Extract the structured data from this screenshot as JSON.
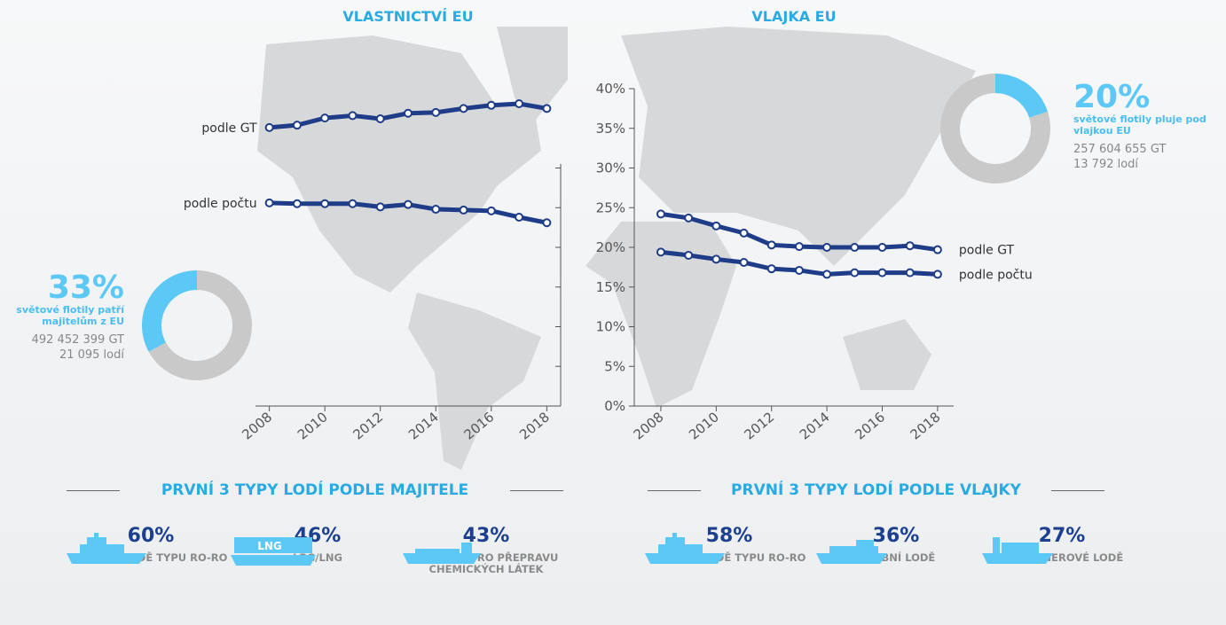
{
  "chart_data": [
    {
      "type": "line",
      "title": "VLASTNICTVÍ EU",
      "x": [
        2008,
        2009,
        2010,
        2011,
        2012,
        2013,
        2014,
        2015,
        2016,
        2017,
        2018
      ],
      "xlim": [
        2007.5,
        2018.5
      ],
      "xticks": [
        2008,
        2010,
        2012,
        2014,
        2016,
        2018
      ],
      "ylim": [
        0,
        40
      ],
      "series": [
        {
          "name": "podle GT",
          "color": "#1f3c88",
          "values": [
            35.1,
            35.4,
            36.3,
            36.6,
            36.2,
            36.9,
            37.0,
            37.5,
            37.9,
            38.1,
            37.5
          ]
        },
        {
          "name": "podle počtu",
          "color": "#1f3c88",
          "values": [
            25.6,
            25.5,
            25.5,
            25.5,
            25.1,
            25.4,
            24.8,
            24.7,
            24.6,
            23.8,
            23.1
          ]
        }
      ]
    },
    {
      "type": "line",
      "title": "VLAJKA EU",
      "x": [
        2008,
        2009,
        2010,
        2011,
        2012,
        2013,
        2014,
        2015,
        2016,
        2017,
        2018
      ],
      "xlim": [
        2007.04,
        2018.58
      ],
      "xticks": [
        2008,
        2010,
        2012,
        2014,
        2016,
        2018
      ],
      "ylim": [
        0,
        40
      ],
      "yticks": [
        {
          "value": 0,
          "label": "0%"
        },
        {
          "value": 5,
          "label": "5%"
        },
        {
          "value": 10,
          "label": "10%"
        },
        {
          "value": 15,
          "label": "15%"
        },
        {
          "value": 20,
          "label": "20%"
        },
        {
          "value": 25,
          "label": "25%"
        },
        {
          "value": 30,
          "label": "30%"
        },
        {
          "value": 35,
          "label": "35%"
        },
        {
          "value": 40,
          "label": "40%"
        }
      ],
      "series": [
        {
          "name": "podle GT",
          "color": "#1f3c88",
          "values": [
            24.2,
            23.7,
            22.7,
            21.8,
            20.3,
            20.1,
            20.0,
            20.0,
            20.0,
            20.2,
            19.7
          ]
        },
        {
          "name": "podle počtu",
          "color": "#1f3c88",
          "values": [
            19.4,
            19.0,
            18.5,
            18.1,
            17.3,
            17.1,
            16.6,
            16.8,
            16.8,
            16.8,
            16.6
          ]
        }
      ]
    },
    {
      "type": "donut",
      "values": [
        33
      ],
      "value_labels": [
        "33%"
      ],
      "subtitle": "světové flotily patří majitelům z EU",
      "details": [
        "492 452 399 GT",
        "21 095 lodí"
      ],
      "colors": [
        "#5bc8f5",
        "#c9c9c9"
      ],
      "direction": "counterclockwise"
    },
    {
      "type": "donut",
      "values": [
        20
      ],
      "value_labels": [
        "20%"
      ],
      "subtitle": "světové flotily pluje pod vlajkou EU",
      "details": [
        "257 604 655 GT",
        "13 792 lodí"
      ],
      "colors": [
        "#5bc8f5",
        "#c9c9c9"
      ],
      "direction": "clockwise"
    }
  ],
  "sections": [
    {
      "title": "PRVNÍ 3 TYPY LODÍ PODLE MAJITELE",
      "items": [
        {
          "value": "60%",
          "label": "OSOBNÍ LODĚ TYPU RO-RO"
        },
        {
          "value": "46%",
          "label": "LPG/LNG",
          "icon_text": "LNG"
        },
        {
          "value": "43%",
          "label": "TANKERY PRO PŘEPRAVU CHEMICKÝCH LÁTEK"
        }
      ]
    },
    {
      "title": "PRVNÍ 3 TYPY LODÍ PODLE VLAJKY",
      "items": [
        {
          "value": "58%",
          "label": "OSOBNÍ LODĚ TYPU RO-RO"
        },
        {
          "value": "36%",
          "label": "OSOBNÍ LODĚ"
        },
        {
          "value": "27%",
          "label": "KONTEJNEROVÉ LODĚ"
        }
      ]
    }
  ]
}
